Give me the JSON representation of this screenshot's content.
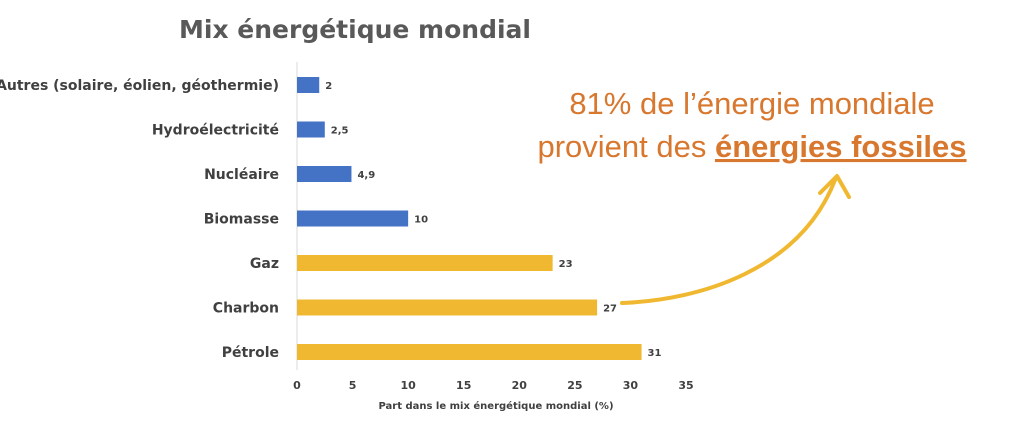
{
  "chart_data": {
    "type": "bar",
    "orientation": "horizontal",
    "title": "Mix énergétique mondial",
    "categories": [
      "Autres (solaire, éolien, géothermie)",
      "Hydroélectricité",
      "Nucléaire",
      "Biomasse",
      "Gaz",
      "Charbon",
      "Pétrole"
    ],
    "values": [
      2,
      2.5,
      4.9,
      10,
      23,
      27,
      31
    ],
    "value_labels": [
      "2",
      "2,5",
      "4,9",
      "10",
      "23",
      "27",
      "31"
    ],
    "bar_colors": [
      "#4472C4",
      "#4472C4",
      "#4472C4",
      "#4472C4",
      "#F0B830",
      "#F0B830",
      "#F0B830"
    ],
    "xlabel": "Part dans le mix énergétique mondial (%)",
    "ylabel": "",
    "xlim": [
      0,
      35
    ],
    "xticks": [
      "0",
      "5",
      "10",
      "15",
      "20",
      "25",
      "30",
      "35"
    ],
    "grid": false,
    "annotation": {
      "line1": "81% de l’énergie mondiale",
      "line2_prefix": "provient des ",
      "line2_emphasis": "énergies fossiles",
      "points_to": "Charbon"
    }
  },
  "colors": {
    "fossil": "#F0B830",
    "non_fossil": "#4472C4",
    "annotation": "#D8772E",
    "title": "#595959",
    "text": "#404040",
    "axis": "#D9D9D9"
  }
}
